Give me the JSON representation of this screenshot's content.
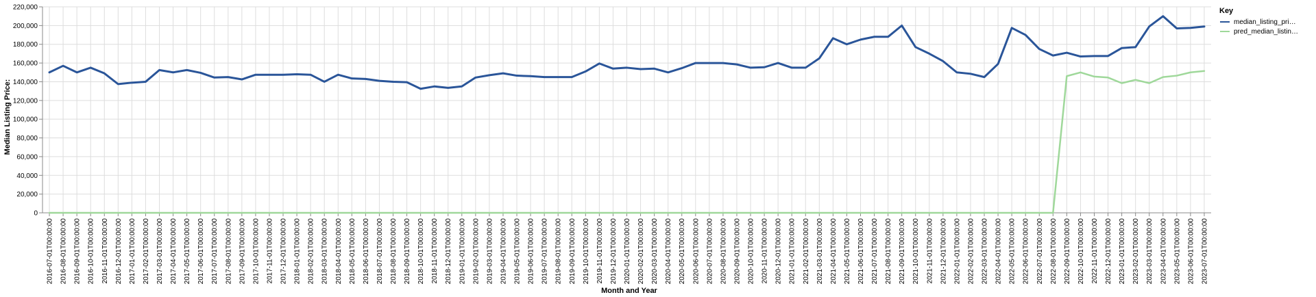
{
  "chart_data": {
    "type": "line",
    "xlabel": "Month and Year",
    "ylabel": "Median Listing Price:",
    "ylim": [
      0,
      220000
    ],
    "y_ticks": [
      0,
      20000,
      40000,
      60000,
      80000,
      100000,
      120000,
      140000,
      160000,
      180000,
      200000,
      220000
    ],
    "y_tick_labels": [
      "0",
      "20,000",
      "40,000",
      "60,000",
      "80,000",
      "100,000",
      "120,000",
      "140,000",
      "160,000",
      "180,000",
      "200,000",
      "220,000"
    ],
    "grid": true,
    "legend": {
      "title": "Key",
      "placement": "top-right",
      "entries": [
        "median_listing_pri…",
        "pred_median_listin…"
      ]
    },
    "x": [
      "2016-07-01T00:00:00",
      "2016-08-01T00:00:00",
      "2016-09-01T00:00:00",
      "2016-10-01T00:00:00",
      "2016-11-01T00:00:00",
      "2016-12-01T00:00:00",
      "2017-01-01T00:00:00",
      "2017-02-01T00:00:00",
      "2017-03-01T00:00:00",
      "2017-04-01T00:00:00",
      "2017-05-01T00:00:00",
      "2017-06-01T00:00:00",
      "2017-07-01T00:00:00",
      "2017-08-01T00:00:00",
      "2017-09-01T00:00:00",
      "2017-10-01T00:00:00",
      "2017-11-01T00:00:00",
      "2017-12-01T00:00:00",
      "2018-01-01T00:00:00",
      "2018-02-01T00:00:00",
      "2018-03-01T00:00:00",
      "2018-04-01T00:00:00",
      "2018-05-01T00:00:00",
      "2018-06-01T00:00:00",
      "2018-07-01T00:00:00",
      "2018-08-01T00:00:00",
      "2018-09-01T00:00:00",
      "2018-10-01T00:00:00",
      "2018-11-01T00:00:00",
      "2018-12-01T00:00:00",
      "2019-01-01T00:00:00",
      "2019-02-01T00:00:00",
      "2019-03-01T00:00:00",
      "2019-04-01T00:00:00",
      "2019-05-01T00:00:00",
      "2019-06-01T00:00:00",
      "2019-07-01T00:00:00",
      "2019-08-01T00:00:00",
      "2019-09-01T00:00:00",
      "2019-10-01T00:00:00",
      "2019-11-01T00:00:00",
      "2019-12-01T00:00:00",
      "2020-01-01T00:00:00",
      "2020-02-01T00:00:00",
      "2020-03-01T00:00:00",
      "2020-04-01T00:00:00",
      "2020-05-01T00:00:00",
      "2020-06-01T00:00:00",
      "2020-07-01T00:00:00",
      "2020-08-01T00:00:00",
      "2020-09-01T00:00:00",
      "2020-10-01T00:00:00",
      "2020-11-01T00:00:00",
      "2020-12-01T00:00:00",
      "2021-01-01T00:00:00",
      "2021-02-01T00:00:00",
      "2021-03-01T00:00:00",
      "2021-04-01T00:00:00",
      "2021-05-01T00:00:00",
      "2021-06-01T00:00:00",
      "2021-07-01T00:00:00",
      "2021-08-01T00:00:00",
      "2021-09-01T00:00:00",
      "2021-10-01T00:00:00",
      "2021-11-01T00:00:00",
      "2021-12-01T00:00:00",
      "2022-01-01T00:00:00",
      "2022-02-01T00:00:00",
      "2022-03-01T00:00:00",
      "2022-04-01T00:00:00",
      "2022-05-01T00:00:00",
      "2022-06-01T00:00:00",
      "2022-07-01T00:00:00",
      "2022-08-01T00:00:00",
      "2022-09-01T00:00:00",
      "2022-10-01T00:00:00",
      "2022-11-01T00:00:00",
      "2022-12-01T00:00:00",
      "2023-01-01T00:00:00",
      "2023-02-01T00:00:00",
      "2023-03-01T00:00:00",
      "2023-04-01T00:00:00",
      "2023-05-01T00:00:00",
      "2023-06-01T00:00:00",
      "2023-07-01T00:00:00"
    ],
    "series": [
      {
        "name": "median_listing_pri…",
        "color": "#2a5599",
        "values": [
          150000,
          157000,
          150000,
          155000,
          149000,
          137500,
          139000,
          140000,
          152500,
          150000,
          152500,
          149500,
          144500,
          145000,
          142500,
          147500,
          147500,
          147500,
          148000,
          147500,
          140000,
          147500,
          143500,
          143000,
          141000,
          140000,
          139500,
          132500,
          135000,
          133500,
          135000,
          144500,
          147000,
          149000,
          146500,
          146000,
          145000,
          145000,
          145000,
          151000,
          159500,
          154000,
          155000,
          153500,
          154000,
          150000,
          154500,
          160000,
          160000,
          160000,
          158500,
          155000,
          155500,
          160000,
          155000,
          155000,
          165000,
          186500,
          180000,
          185000,
          188000,
          188000,
          200000,
          177000,
          170000,
          162000,
          150000,
          148500,
          145000,
          159000,
          197500,
          190000,
          175000,
          168000,
          171000,
          167000,
          167500,
          167500,
          176000,
          177000,
          199000,
          210000,
          197000,
          197500,
          199000
        ]
      },
      {
        "name": "pred_median_listin…",
        "color": "#9fd89a",
        "values": [
          0,
          0,
          0,
          0,
          0,
          0,
          0,
          0,
          0,
          0,
          0,
          0,
          0,
          0,
          0,
          0,
          0,
          0,
          0,
          0,
          0,
          0,
          0,
          0,
          0,
          0,
          0,
          0,
          0,
          0,
          0,
          0,
          0,
          0,
          0,
          0,
          0,
          0,
          0,
          0,
          0,
          0,
          0,
          0,
          0,
          0,
          0,
          0,
          0,
          0,
          0,
          0,
          0,
          0,
          0,
          0,
          0,
          0,
          0,
          0,
          0,
          0,
          0,
          0,
          0,
          0,
          0,
          0,
          0,
          0,
          0,
          0,
          0,
          0,
          146000,
          150000,
          145500,
          144500,
          138500,
          142000,
          138500,
          145000,
          146500,
          150000,
          151500
        ]
      }
    ]
  }
}
